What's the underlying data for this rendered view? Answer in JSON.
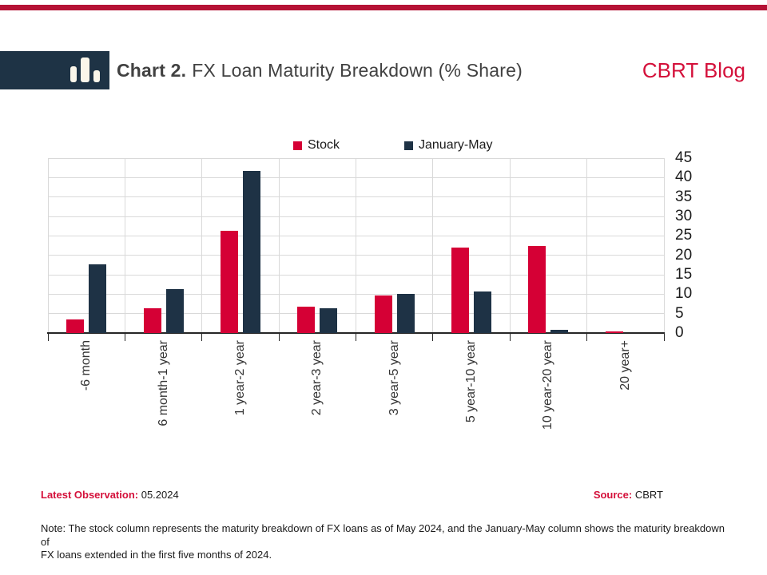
{
  "header": {
    "title_prefix": "Chart 2.",
    "title_rest": "FX Loan Maturity Breakdown (% Share)",
    "brand": "CBRT Blog"
  },
  "legend": [
    {
      "label": "Stock"
    },
    {
      "label": "January-May"
    }
  ],
  "colors": {
    "accent_red": "#d4103a",
    "top_bar_red": "#b51235",
    "bar_red": "#d50035",
    "bar_navy": "#1e3245",
    "logo_navy": "#1e3345",
    "grid_gray": "#d9d9d9",
    "axis_dark": "#262626"
  },
  "chart_data": {
    "type": "bar",
    "title": "FX Loan Maturity Breakdown (% Share)",
    "categories": [
      "-6 month",
      "6 month-1 year",
      "1 year-2 year",
      "2 year-3 year",
      "3 year-5 year",
      "5 year-10 year",
      "10 year-20 year",
      "20 year+"
    ],
    "series": [
      {
        "name": "Stock",
        "color_key": "bar_red",
        "values": [
          3.5,
          6.3,
          26.4,
          6.7,
          9.7,
          22.0,
          22.5,
          0.5
        ]
      },
      {
        "name": "January-May",
        "color_key": "bar_navy",
        "values": [
          17.6,
          11.2,
          41.8,
          6.4,
          10.1,
          10.7,
          0.8,
          0
        ]
      }
    ],
    "xlabel": "",
    "ylabel": "",
    "ylim": [
      0,
      45
    ],
    "yticks": [
      0,
      5,
      10,
      15,
      20,
      25,
      30,
      35,
      40,
      45
    ],
    "y_axis_side": "right",
    "legend_position": "top",
    "grid": true
  },
  "footer": {
    "latest_observation_label": "Latest Observation:",
    "latest_observation_value": "05.2024",
    "source_label": "Source:",
    "source_value": "CBRT",
    "note_line1": "Note: The stock column represents the maturity breakdown of FX loans as of May 2024, and the January-May column shows the maturity breakdown of",
    "note_line2": "FX loans extended in the first five months of 2024."
  }
}
